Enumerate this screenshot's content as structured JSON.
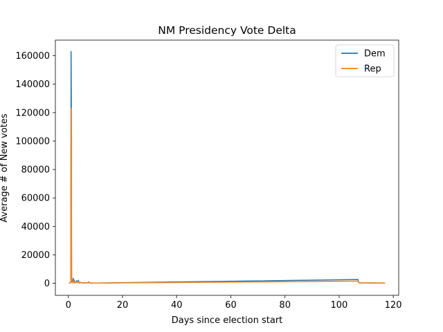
{
  "chart_data": {
    "type": "line",
    "title": "NM Presidency Vote Delta",
    "xlabel": "Days since election start",
    "ylabel": "Average # of New votes",
    "xlim": [
      -4.8,
      122
    ],
    "ylim": [
      -8500,
      171000
    ],
    "xticks": [
      0,
      20,
      40,
      60,
      80,
      100,
      120
    ],
    "yticks": [
      0,
      20000,
      40000,
      60000,
      80000,
      100000,
      120000,
      140000,
      160000
    ],
    "grid": false,
    "legend_placement": "top-right",
    "series": [
      {
        "name": "Dem",
        "color": "#1f77b4",
        "x": [
          0.2,
          0.6,
          0.9,
          1.0,
          1.1,
          1.15,
          1.2,
          1.3,
          1.4,
          1.6,
          1.8,
          2.0,
          2.1,
          2.3,
          2.6,
          3.0,
          3.4,
          3.7,
          4.0,
          4.5,
          5.0,
          6.0,
          7.0,
          7.5,
          8.0,
          107.0,
          107.2,
          108.0,
          112.0,
          117.0
        ],
        "y": [
          0,
          200,
          1200,
          163000,
          120000,
          40000,
          2000,
          800,
          400,
          1200,
          3500,
          400,
          2200,
          900,
          300,
          1800,
          600,
          2100,
          300,
          700,
          200,
          400,
          150,
          900,
          100,
          2600,
          400,
          300,
          250,
          200
        ]
      },
      {
        "name": "Rep",
        "color": "#ff7f0e",
        "x": [
          0.2,
          0.6,
          0.9,
          1.0,
          1.1,
          1.15,
          1.2,
          1.3,
          1.4,
          1.6,
          1.8,
          2.0,
          2.1,
          2.3,
          2.6,
          3.0,
          3.4,
          3.7,
          4.0,
          4.5,
          5.0,
          6.0,
          7.0,
          7.5,
          8.0,
          107.0,
          107.2,
          108.0,
          112.0,
          117.0
        ],
        "y": [
          0,
          150,
          900,
          123000,
          95000,
          36000,
          1500,
          600,
          300,
          900,
          1800,
          300,
          1200,
          600,
          200,
          1100,
          400,
          1300,
          200,
          500,
          150,
          300,
          100,
          500,
          80,
          1500,
          300,
          250,
          200,
          150
        ]
      }
    ]
  }
}
